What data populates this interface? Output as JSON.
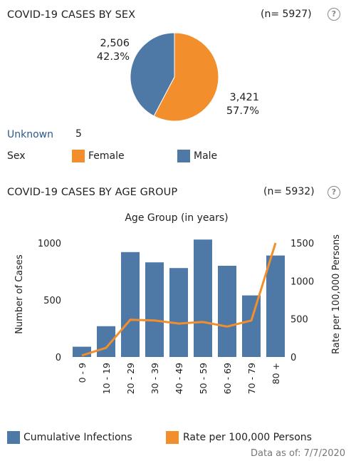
{
  "sex_panel": {
    "title": "COVID-19 CASES BY SEX",
    "n_label": "(n= 5927)",
    "help_glyph": "?",
    "unknown_label": "Unknown",
    "unknown_value": "5",
    "legend_title": "Sex",
    "male_label_count": "2,506",
    "male_label_pct": "42.3%",
    "female_label_count": "3,421",
    "female_label_pct": "57.7%"
  },
  "age_panel": {
    "title": "COVID-19 CASES BY AGE GROUP",
    "n_label": "(n= 5932)",
    "help_glyph": "?"
  },
  "colors": {
    "female": "#f28e2b",
    "male": "#4e79a7",
    "link": "#2a5b8a"
  },
  "footer": {
    "label": "Data as of:",
    "date": "7/7/2020"
  },
  "chart_data": [
    {
      "type": "pie",
      "slices": [
        {
          "name": "Female",
          "value": 3421,
          "percent": 57.7,
          "color": "#f28e2b"
        },
        {
          "name": "Male",
          "value": 2506,
          "percent": 42.3,
          "color": "#4e79a7"
        }
      ],
      "legend": {
        "title": "Sex",
        "entries": [
          "Female",
          "Male"
        ]
      }
    },
    {
      "type": "bar",
      "title": "Age Group (in years)",
      "categories": [
        "0 - 9",
        "10 - 19",
        "20 - 29",
        "30 - 39",
        "40 - 49",
        "50 - 59",
        "60 - 69",
        "70 - 79",
        "80 +"
      ],
      "series": [
        {
          "name": "Cumulative Infections",
          "type": "bar",
          "axis": "left",
          "color": "#4e79a7",
          "values": [
            90,
            270,
            920,
            830,
            780,
            1030,
            800,
            540,
            890
          ]
        },
        {
          "name": "Rate per 100,000 Persons",
          "type": "line",
          "axis": "right",
          "color": "#f28e2b",
          "values": [
            20,
            120,
            490,
            480,
            440,
            460,
            400,
            480,
            1500
          ]
        }
      ],
      "ylabel": "Number of Cases",
      "ylabel_right": "Rate per 100,000 Persons",
      "ylim": [
        0,
        1100
      ],
      "yticks": [
        0,
        500,
        1000
      ],
      "ylim_right": [
        0,
        1650
      ],
      "yticks_right": [
        0,
        500,
        1000,
        1500
      ],
      "grid": false,
      "legend_position": "bottom"
    }
  ]
}
